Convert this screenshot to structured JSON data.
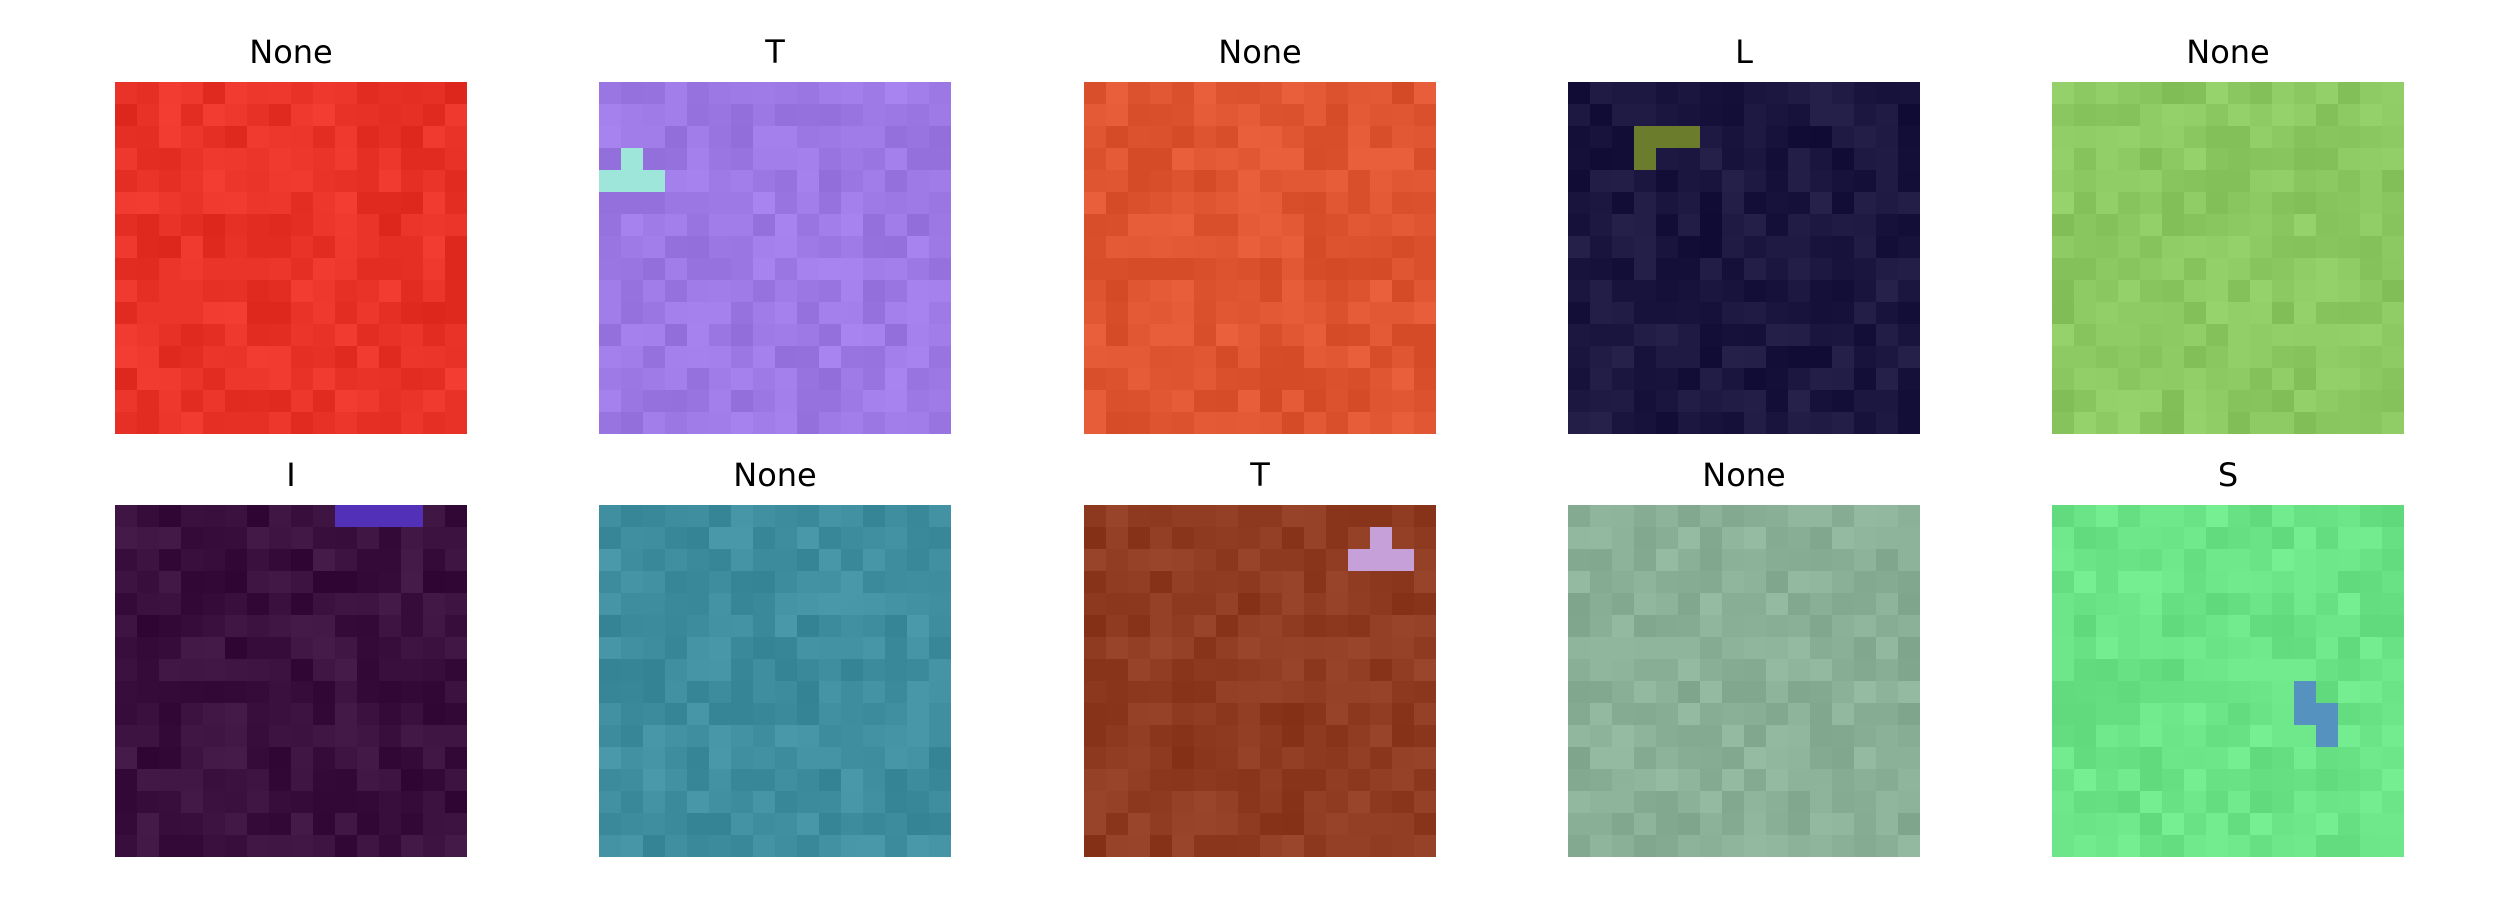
{
  "grid_size": 16,
  "panels": [
    {
      "title": "None",
      "base_color": "#e83227",
      "shape_color": null,
      "shape_cells": []
    },
    {
      "title": "T",
      "base_color": "#9d79e6",
      "shape_color": "#9fe6da",
      "shape_cells": [
        [
          0,
          4
        ],
        [
          1,
          4
        ],
        [
          2,
          4
        ],
        [
          1,
          3
        ]
      ]
    },
    {
      "title": "None",
      "base_color": "#df5532",
      "shape_color": null,
      "shape_cells": []
    },
    {
      "title": "L",
      "base_color": "#1a1640",
      "shape_color": "#6b7d2c",
      "shape_cells": [
        [
          3,
          2
        ],
        [
          4,
          2
        ],
        [
          5,
          2
        ],
        [
          3,
          3
        ]
      ]
    },
    {
      "title": "None",
      "base_color": "#8bc862",
      "shape_color": null,
      "shape_cells": []
    },
    {
      "title": "I",
      "base_color": "#3a103e",
      "shape_color": "#5330b8",
      "shape_cells": [
        [
          10,
          0
        ],
        [
          11,
          0
        ],
        [
          12,
          0
        ],
        [
          13,
          0
        ]
      ]
    },
    {
      "title": "None",
      "base_color": "#3f8ea0",
      "shape_color": null,
      "shape_cells": []
    },
    {
      "title": "T",
      "base_color": "#8e3b22",
      "shape_color": "#c6a0d8",
      "shape_cells": [
        [
          12,
          2
        ],
        [
          13,
          2
        ],
        [
          14,
          2
        ],
        [
          13,
          1
        ]
      ]
    },
    {
      "title": "None",
      "base_color": "#8ab098",
      "shape_color": null,
      "shape_cells": []
    },
    {
      "title": "S",
      "base_color": "#6be488",
      "shape_color": "#5592bf",
      "shape_cells": [
        [
          11,
          8
        ],
        [
          11,
          9
        ],
        [
          12,
          9
        ],
        [
          12,
          10
        ]
      ]
    }
  ]
}
